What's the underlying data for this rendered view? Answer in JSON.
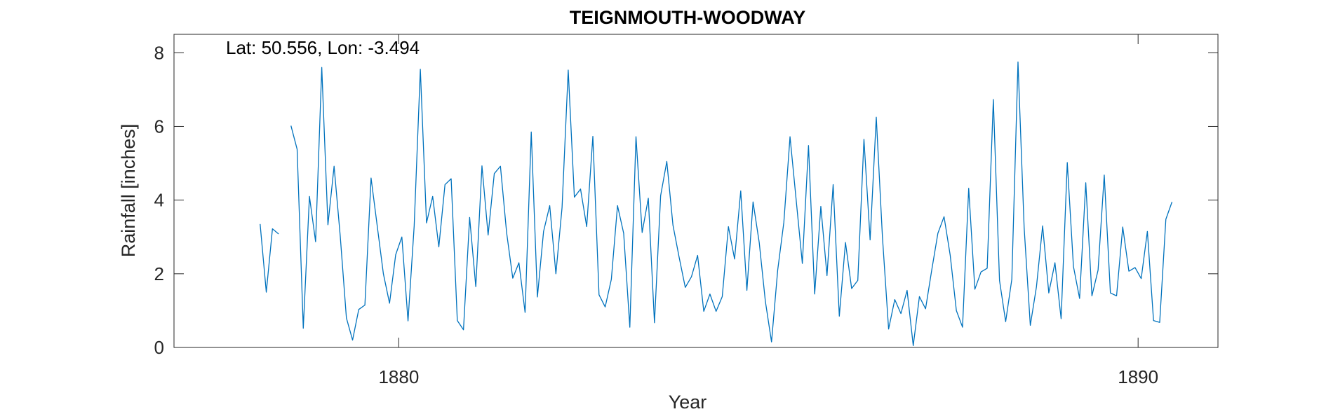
{
  "chart_data": {
    "type": "line",
    "title": "TEIGNMOUTH-WOODWAY",
    "xlabel": "Year",
    "ylabel": "Rainfall [inches]",
    "annotation": "Lat: 50.556, Lon: -3.494",
    "xlim": [
      1876.96,
      1891.08
    ],
    "ylim": [
      0,
      8.5
    ],
    "xticks": [
      1880,
      1890
    ],
    "yticks": [
      0,
      2,
      4,
      6,
      8
    ],
    "grid": false,
    "line_color": "#0072BD",
    "segments": [
      {
        "start_year": 1878.125,
        "values": [
          3.35,
          1.5,
          3.22,
          3.08
        ]
      },
      {
        "start_year": 1878.542,
        "values": [
          6.02,
          5.38,
          0.52,
          4.1,
          2.87,
          7.6,
          3.33,
          4.92,
          3.02,
          0.8,
          0.2,
          1.03,
          1.15,
          4.6,
          3.3,
          2.0,
          1.2,
          2.52,
          3.0,
          0.72,
          3.3,
          7.55,
          3.38,
          4.1,
          2.73,
          4.42,
          4.58,
          0.73,
          0.48,
          3.53,
          1.65,
          4.93,
          3.05,
          4.72,
          4.92,
          3.12,
          1.88,
          2.3,
          0.95,
          5.85,
          1.37,
          3.15,
          3.85,
          2.0,
          3.8,
          7.53,
          4.08,
          4.3,
          3.28,
          5.73,
          1.43,
          1.1,
          1.85,
          3.85,
          3.1,
          0.55,
          5.72,
          3.12,
          4.05,
          0.67,
          4.12,
          5.05,
          3.32,
          2.45,
          1.63,
          1.92,
          2.5,
          0.98,
          1.45,
          0.98,
          1.38,
          3.28,
          2.4,
          4.25,
          1.55,
          3.95,
          2.85,
          1.25,
          0.15,
          2.1,
          3.4,
          5.72,
          4.0,
          2.28,
          5.48,
          1.45,
          3.83,
          1.95,
          4.42,
          0.85,
          2.85,
          1.6,
          1.82,
          5.65,
          2.92,
          6.25,
          3.0,
          0.5,
          1.3,
          0.92,
          1.55,
          0.05,
          1.38,
          1.05,
          2.1,
          3.1,
          3.55,
          2.5,
          1.0,
          0.55,
          4.32,
          1.58,
          2.05,
          2.15,
          6.73,
          1.82,
          0.7,
          1.85,
          7.75,
          3.25,
          0.6,
          1.65,
          3.3,
          1.48,
          2.3,
          0.78,
          5.02,
          2.2,
          1.33,
          4.47,
          1.4,
          2.1,
          4.68,
          1.48,
          1.4,
          3.27,
          2.07,
          2.17,
          1.87,
          3.15,
          0.73,
          0.68,
          3.48,
          3.95
        ]
      }
    ]
  }
}
